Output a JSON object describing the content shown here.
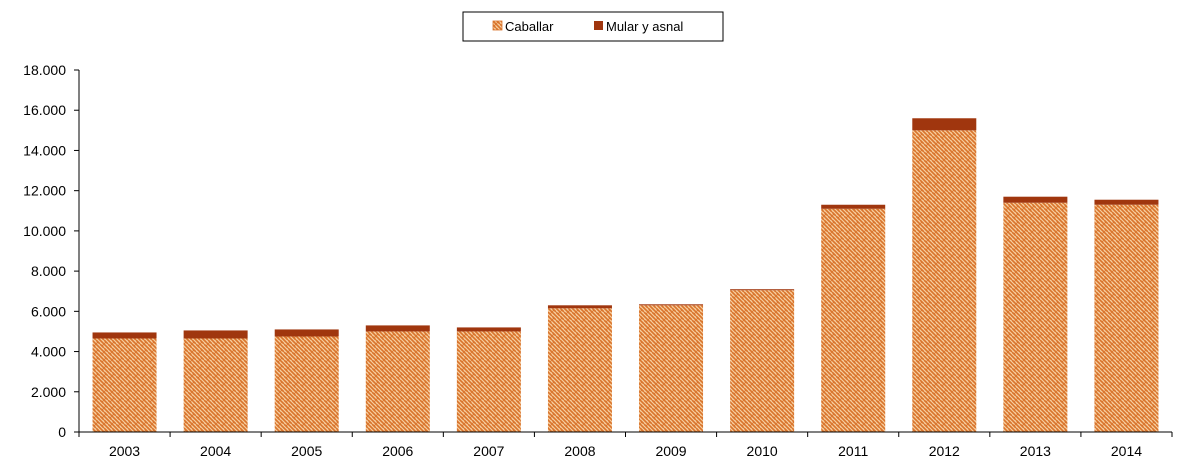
{
  "chart_data": {
    "type": "bar",
    "stacked": true,
    "title": "",
    "xlabel": "",
    "ylabel": "",
    "categories": [
      "2003",
      "2004",
      "2005",
      "2006",
      "2007",
      "2008",
      "2009",
      "2010",
      "2011",
      "2012",
      "2013",
      "2014"
    ],
    "series": [
      {
        "name": "Caballar",
        "color": "#E8964A",
        "pattern": "woven-brick",
        "values": [
          4650,
          4650,
          4750,
          5000,
          5000,
          6150,
          6300,
          7050,
          11100,
          15000,
          11400,
          11300
        ]
      },
      {
        "name": "Mular y asnal",
        "color": "#A0360E",
        "values": [
          300,
          400,
          350,
          300,
          200,
          150,
          50,
          50,
          200,
          600,
          300,
          250
        ]
      }
    ],
    "ylim": [
      0,
      18000
    ],
    "yticks": [
      0,
      2000,
      4000,
      6000,
      8000,
      10000,
      12000,
      14000,
      16000,
      18000
    ],
    "ytick_labels": [
      "0",
      "2.000",
      "4.000",
      "6.000",
      "8.000",
      "10.000",
      "12.000",
      "14.000",
      "16.000",
      "18.000"
    ],
    "grid": false,
    "legend_position": "top-center"
  }
}
